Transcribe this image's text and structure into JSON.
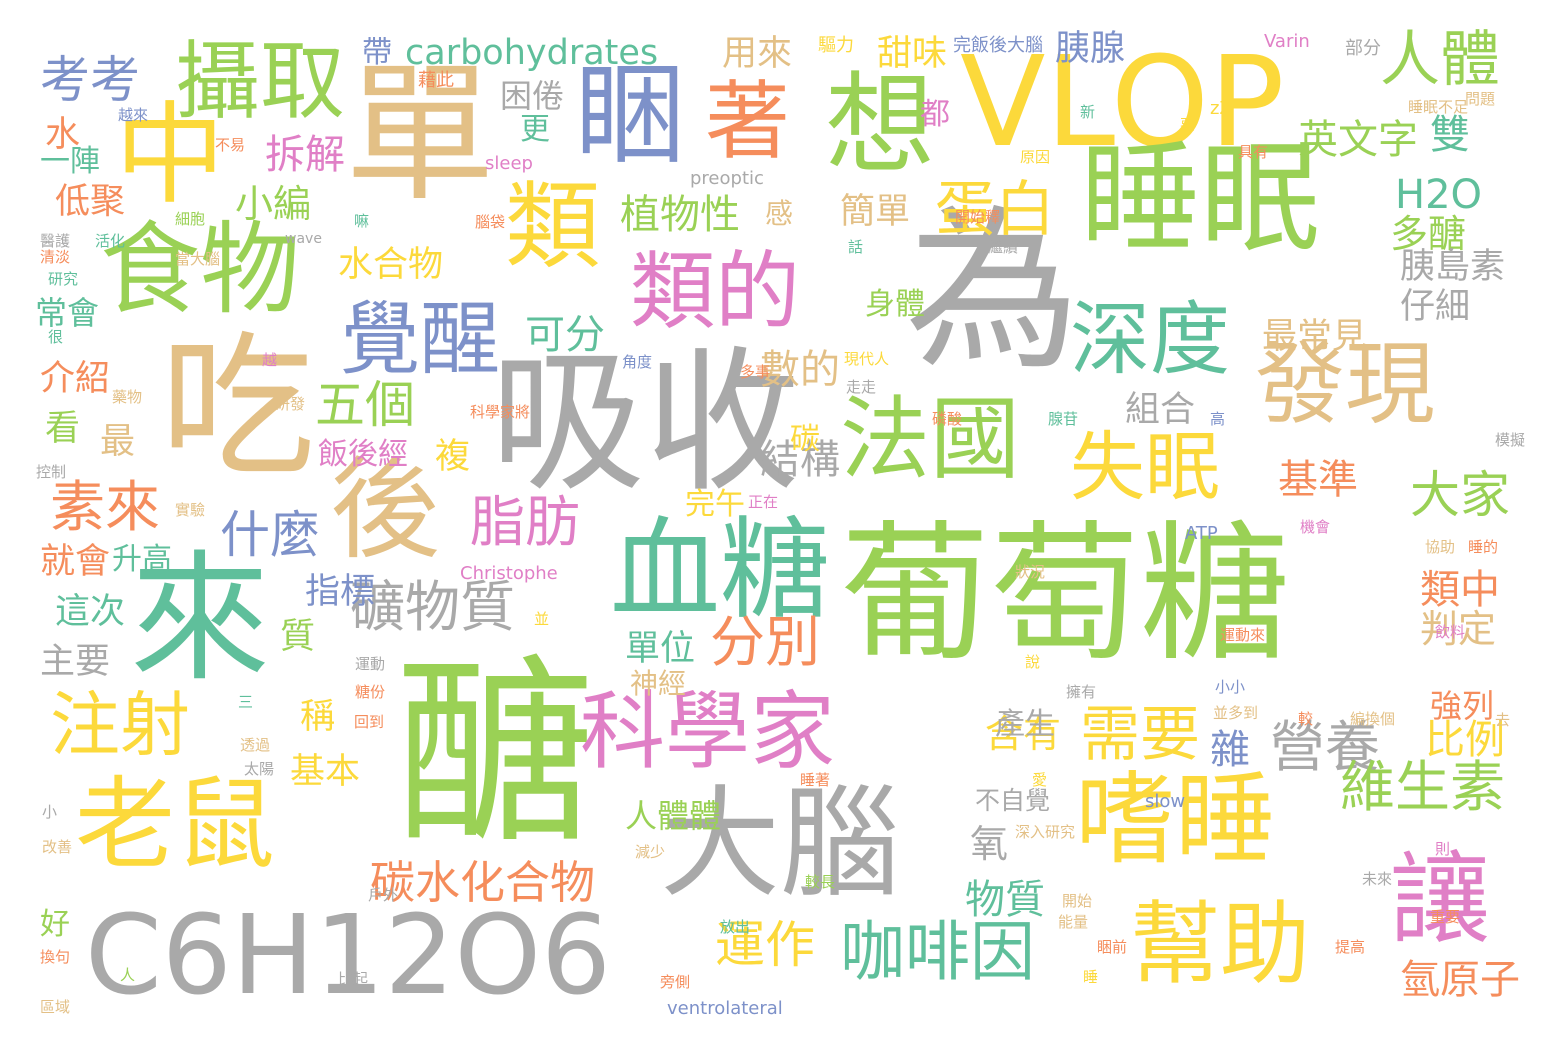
{
  "palette": {
    "green": "#9ad155",
    "yellow": "#fcd93b",
    "gray": "#a9a9a9",
    "tan": "#e3c086",
    "teal": "#5fbf9b",
    "pink": "#e07fc6",
    "orange": "#f58d5c",
    "blue": "#7d91c9"
  },
  "words": [
    {
      "text": "葡萄糖",
      "color": "green"
    },
    {
      "text": "醣",
      "color": "green"
    },
    {
      "text": "為",
      "color": "gray"
    },
    {
      "text": "吸收",
      "color": "gray"
    },
    {
      "text": "單",
      "color": "tan"
    },
    {
      "text": "VLOP",
      "color": "yellow"
    },
    {
      "text": "睡眠",
      "color": "green"
    },
    {
      "text": "吃",
      "color": "tan"
    },
    {
      "text": "來",
      "color": "teal"
    },
    {
      "text": "C6H12O6",
      "color": "gray"
    },
    {
      "text": "老鼠",
      "color": "yellow"
    },
    {
      "text": "食物",
      "color": "green"
    },
    {
      "text": "血糖",
      "color": "teal"
    },
    {
      "text": "大腦",
      "color": "gray"
    },
    {
      "text": "嗜睡",
      "color": "yellow"
    },
    {
      "text": "後",
      "color": "tan"
    },
    {
      "text": "法國",
      "color": "green"
    },
    {
      "text": "科學家",
      "color": "pink"
    },
    {
      "text": "類的",
      "color": "pink"
    },
    {
      "text": "想",
      "color": "green"
    },
    {
      "text": "發現",
      "color": "tan"
    },
    {
      "text": "幫助",
      "color": "yellow"
    },
    {
      "text": "中",
      "color": "yellow"
    },
    {
      "text": "睏",
      "color": "blue"
    },
    {
      "text": "攝取",
      "color": "green"
    },
    {
      "text": "著",
      "color": "orange"
    },
    {
      "text": "類",
      "color": "yellow"
    },
    {
      "text": "讓",
      "color": "pink"
    },
    {
      "text": "深度",
      "color": "teal"
    },
    {
      "text": "覺醒",
      "color": "blue"
    },
    {
      "text": "注射",
      "color": "yellow"
    },
    {
      "text": "失眠",
      "color": "yellow"
    },
    {
      "text": "咖啡因",
      "color": "teal"
    },
    {
      "text": "人體",
      "color": "green"
    },
    {
      "text": "素來",
      "color": "orange"
    },
    {
      "text": "脂肪",
      "color": "pink"
    },
    {
      "text": "礦物質",
      "color": "gray"
    },
    {
      "text": "碳水化合物",
      "color": "orange"
    },
    {
      "text": "carbohydrates",
      "color": "teal"
    },
    {
      "text": "蛋白",
      "color": "yellow"
    },
    {
      "text": "需要",
      "color": "yellow"
    },
    {
      "text": "營養",
      "color": "gray"
    },
    {
      "text": "維生素",
      "color": "green"
    },
    {
      "text": "大家",
      "color": "green"
    },
    {
      "text": "運作",
      "color": "yellow"
    },
    {
      "text": "分別",
      "color": "orange"
    },
    {
      "text": "五個",
      "color": "green"
    },
    {
      "text": "什麼",
      "color": "blue"
    },
    {
      "text": "考考",
      "color": "blue"
    },
    {
      "text": "拆解",
      "color": "pink"
    },
    {
      "text": "小編",
      "color": "green"
    },
    {
      "text": "水合物",
      "color": "yellow"
    },
    {
      "text": "植物性",
      "color": "green"
    },
    {
      "text": "簡單",
      "color": "tan"
    },
    {
      "text": "甜味",
      "color": "yellow"
    },
    {
      "text": "用來",
      "color": "tan"
    },
    {
      "text": "胰腺",
      "color": "blue"
    },
    {
      "text": "英文字",
      "color": "green"
    },
    {
      "text": "雙",
      "color": "teal"
    },
    {
      "text": "H2O",
      "color": "teal"
    },
    {
      "text": "多醣",
      "color": "green"
    },
    {
      "text": "胰島素",
      "color": "gray"
    },
    {
      "text": "仔細",
      "color": "gray"
    },
    {
      "text": "最常見",
      "color": "tan"
    },
    {
      "text": "組合",
      "color": "gray"
    },
    {
      "text": "結構",
      "color": "gray"
    },
    {
      "text": "數的",
      "color": "tan"
    },
    {
      "text": "可分",
      "color": "teal"
    },
    {
      "text": "基準",
      "color": "orange"
    },
    {
      "text": "類中",
      "color": "orange"
    },
    {
      "text": "判定",
      "color": "tan"
    },
    {
      "text": "比例",
      "color": "yellow"
    },
    {
      "text": "含有",
      "color": "yellow"
    },
    {
      "text": "氫原子",
      "color": "orange"
    },
    {
      "text": "物質",
      "color": "teal"
    },
    {
      "text": "指標",
      "color": "blue"
    },
    {
      "text": "這次",
      "color": "teal"
    },
    {
      "text": "主要",
      "color": "gray"
    },
    {
      "text": "就會",
      "color": "orange"
    },
    {
      "text": "升高",
      "color": "teal"
    },
    {
      "text": "低聚",
      "color": "orange"
    },
    {
      "text": "介紹",
      "color": "orange"
    },
    {
      "text": "常會",
      "color": "teal"
    },
    {
      "text": "水",
      "color": "orange"
    },
    {
      "text": "一陣",
      "color": "teal"
    },
    {
      "text": "看",
      "color": "green"
    },
    {
      "text": "最",
      "color": "tan"
    },
    {
      "text": "單位",
      "color": "teal"
    },
    {
      "text": "神經",
      "color": "tan"
    },
    {
      "text": "人體體",
      "color": "green"
    },
    {
      "text": "好",
      "color": "green"
    },
    {
      "text": "飯後經",
      "color": "pink"
    },
    {
      "text": "複",
      "color": "yellow"
    },
    {
      "text": "完午",
      "color": "yellow"
    },
    {
      "text": "碳",
      "color": "yellow"
    },
    {
      "text": "帶",
      "color": "blue"
    },
    {
      "text": "困倦",
      "color": "gray"
    },
    {
      "text": "更",
      "color": "teal"
    },
    {
      "text": "感",
      "color": "tan"
    },
    {
      "text": "都",
      "color": "pink"
    },
    {
      "text": "身體",
      "color": "green"
    },
    {
      "text": "稱",
      "color": "yellow"
    },
    {
      "text": "基本",
      "color": "yellow"
    },
    {
      "text": "質",
      "color": "green"
    },
    {
      "text": "產生",
      "color": "gray"
    },
    {
      "text": "雜",
      "color": "blue"
    },
    {
      "text": "強列",
      "color": "orange"
    },
    {
      "text": "氧",
      "color": "gray"
    },
    {
      "text": "不自覺",
      "color": "gray"
    },
    {
      "text": "slow",
      "color": "blue"
    },
    {
      "text": "ventrolateral",
      "color": "blue"
    },
    {
      "text": "preoptic",
      "color": "gray"
    },
    {
      "text": "Christophe",
      "color": "pink"
    },
    {
      "text": "Varin",
      "color": "pink"
    },
    {
      "text": "sleep",
      "color": "pink"
    },
    {
      "text": "wave",
      "color": "gray"
    },
    {
      "text": "ATP",
      "color": "blue"
    },
    {
      "text": "zZ",
      "color": "yellow"
    },
    {
      "text": "驅力",
      "color": "yellow"
    },
    {
      "text": "完飯後大腦",
      "color": "blue"
    },
    {
      "text": "部分",
      "color": "gray"
    },
    {
      "text": "藉此",
      "color": "orange"
    },
    {
      "text": "越來",
      "color": "blue"
    },
    {
      "text": "不易",
      "color": "orange"
    },
    {
      "text": "細胞",
      "color": "green"
    },
    {
      "text": "活化",
      "color": "teal"
    },
    {
      "text": "清淡",
      "color": "orange"
    },
    {
      "text": "研究",
      "color": "teal"
    },
    {
      "text": "很",
      "color": "teal"
    },
    {
      "text": "醫護",
      "color": "gray"
    },
    {
      "text": "開始釋",
      "color": "orange"
    },
    {
      "text": "繼續",
      "color": "gray"
    },
    {
      "text": "話",
      "color": "teal"
    },
    {
      "text": "腦袋",
      "color": "orange"
    },
    {
      "text": "嘛",
      "color": "teal"
    },
    {
      "text": "當大腦",
      "color": "tan"
    },
    {
      "text": "越",
      "color": "pink"
    },
    {
      "text": "角度",
      "color": "blue"
    },
    {
      "text": "多事",
      "color": "orange"
    },
    {
      "text": "現代人",
      "color": "yellow"
    },
    {
      "text": "走走",
      "color": "gray"
    },
    {
      "text": "藥物",
      "color": "tan"
    },
    {
      "text": "研發",
      "color": "tan"
    },
    {
      "text": "科學家將",
      "color": "orange"
    },
    {
      "text": "控制",
      "color": "gray"
    },
    {
      "text": "實驗",
      "color": "tan"
    },
    {
      "text": "正在",
      "color": "pink"
    },
    {
      "text": "磷酸",
      "color": "orange"
    },
    {
      "text": "腺苷",
      "color": "teal"
    },
    {
      "text": "高",
      "color": "blue"
    },
    {
      "text": "模擬",
      "color": "gray"
    },
    {
      "text": "協助",
      "color": "tan"
    },
    {
      "text": "睡的",
      "color": "orange"
    },
    {
      "text": "機會",
      "color": "pink"
    },
    {
      "text": "狀況",
      "color": "tan"
    },
    {
      "text": "並",
      "color": "yellow"
    },
    {
      "text": "運動來",
      "color": "orange"
    },
    {
      "text": "飲料",
      "color": "pink"
    },
    {
      "text": "說",
      "color": "yellow"
    },
    {
      "text": "擁有",
      "color": "gray"
    },
    {
      "text": "小小",
      "color": "blue"
    },
    {
      "text": "並多到",
      "color": "tan"
    },
    {
      "text": "編換個",
      "color": "tan"
    },
    {
      "text": "較",
      "color": "orange"
    },
    {
      "text": "去",
      "color": "tan"
    },
    {
      "text": "運動",
      "color": "gray"
    },
    {
      "text": "糖份",
      "color": "orange"
    },
    {
      "text": "三",
      "color": "teal"
    },
    {
      "text": "回到",
      "color": "orange"
    },
    {
      "text": "透過",
      "color": "tan"
    },
    {
      "text": "太陽",
      "color": "gray"
    },
    {
      "text": "愛",
      "color": "yellow"
    },
    {
      "text": "睡著",
      "color": "orange"
    },
    {
      "text": "深入研究",
      "color": "tan"
    },
    {
      "text": "則",
      "color": "pink"
    },
    {
      "text": "未來",
      "color": "gray"
    },
    {
      "text": "開始",
      "color": "tan"
    },
    {
      "text": "能量",
      "color": "tan"
    },
    {
      "text": "重要",
      "color": "orange"
    },
    {
      "text": "提高",
      "color": "orange"
    },
    {
      "text": "睡",
      "color": "yellow"
    },
    {
      "text": "睏前",
      "color": "orange"
    },
    {
      "text": "小",
      "color": "gray"
    },
    {
      "text": "改善",
      "color": "tan"
    },
    {
      "text": "減少",
      "color": "tan"
    },
    {
      "text": "較長",
      "color": "green"
    },
    {
      "text": "戶外",
      "color": "gray"
    },
    {
      "text": "放出",
      "color": "teal"
    },
    {
      "text": "換句",
      "color": "orange"
    },
    {
      "text": "人",
      "color": "green"
    },
    {
      "text": "比起",
      "color": "gray"
    },
    {
      "text": "旁側",
      "color": "orange"
    },
    {
      "text": "區域",
      "color": "tan"
    },
    {
      "text": "睡眠不足",
      "color": "tan"
    },
    {
      "text": "問題",
      "color": "tan"
    },
    {
      "text": "惡",
      "color": "yellow"
    },
    {
      "text": "新",
      "color": "teal"
    },
    {
      "text": "具有",
      "color": "orange"
    },
    {
      "text": "原因",
      "color": "yellow"
    }
  ]
}
